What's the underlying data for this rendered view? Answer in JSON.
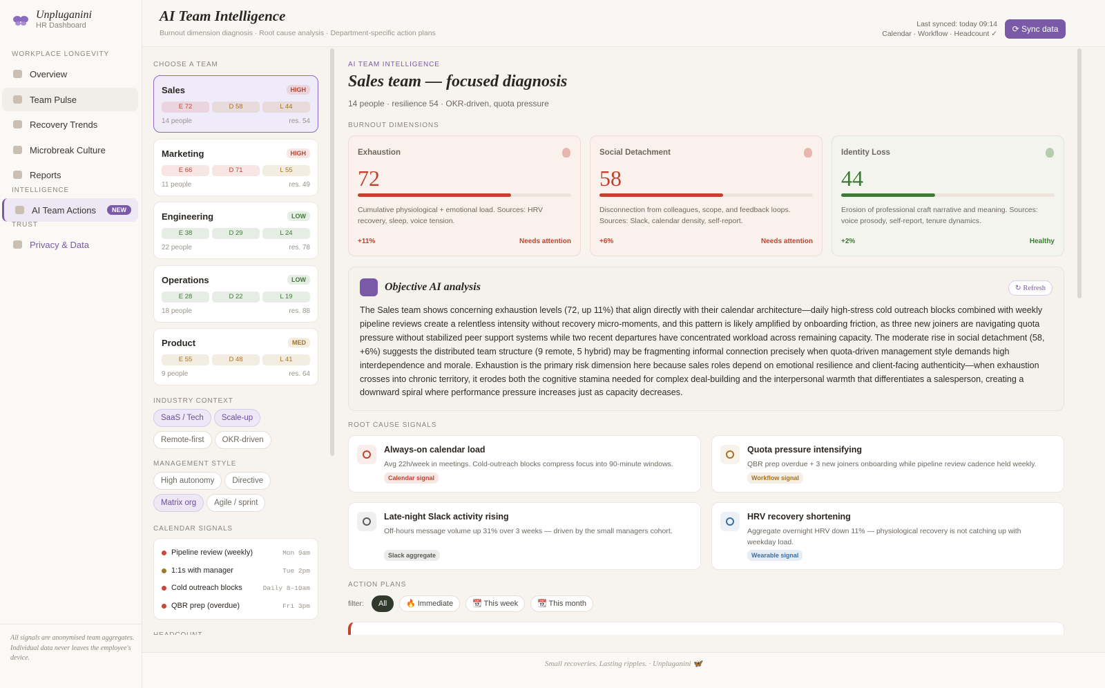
{
  "sidebar": {
    "brand": "Unpluganini",
    "brand_sub": "HR Dashboard",
    "sections": [
      {
        "title": "WORKPLACE LONGEVITY",
        "items": [
          {
            "label": "Overview"
          },
          {
            "label": "Team Pulse",
            "state": "hover"
          },
          {
            "label": "Recovery Trends"
          },
          {
            "label": "Microbreak Culture"
          },
          {
            "label": "Reports"
          }
        ]
      },
      {
        "title": "INTELLIGENCE",
        "items": [
          {
            "label": "AI Team Actions",
            "badge": "NEW",
            "state": "selected"
          }
        ]
      },
      {
        "title": "TRUST",
        "items": [
          {
            "label": "Privacy & Data",
            "state": "accent"
          }
        ]
      }
    ],
    "note": "All signals are anonymised team aggregates. Individual data never leaves the employee's device."
  },
  "header": {
    "title": "AI Team Intelligence",
    "subtitle": "Burnout dimension diagnosis · Root cause analysis · Department-specific action plans",
    "synced": "Last synced: today 09:14",
    "sources": "Calendar · Workflow · Headcount ✓",
    "button": "⟳ Sync data"
  },
  "teams_panel": {
    "title": "CHOOSE A TEAM",
    "teams": [
      {
        "name": "Sales",
        "level": "HIGH",
        "level_color": "#c0432e",
        "selected": true,
        "people": "14 people",
        "resilience": "res. 54",
        "chips": [
          {
            "label": "E 72",
            "color": "#c0432e"
          },
          {
            "label": "D 58",
            "color": "#a8731e"
          },
          {
            "label": "L 44",
            "color": "#a8731e"
          }
        ]
      },
      {
        "name": "Marketing",
        "level": "HIGH",
        "level_color": "#c0432e",
        "people": "11 people",
        "resilience": "res. 49",
        "chips": [
          {
            "label": "E 66",
            "color": "#c0432e"
          },
          {
            "label": "D 71",
            "color": "#c0432e"
          },
          {
            "label": "L 55",
            "color": "#a8731e"
          }
        ]
      },
      {
        "name": "Engineering",
        "level": "LOW",
        "level_color": "#3f7a36",
        "people": "22 people",
        "resilience": "res. 78",
        "chips": [
          {
            "label": "E 38",
            "color": "#3f7a36"
          },
          {
            "label": "D 29",
            "color": "#3f7a36"
          },
          {
            "label": "L 24",
            "color": "#3f7a36"
          }
        ]
      },
      {
        "name": "Operations",
        "level": "LOW",
        "level_color": "#3f7a36",
        "people": "18 people",
        "resilience": "res. 88",
        "chips": [
          {
            "label": "E 28",
            "color": "#3f7a36"
          },
          {
            "label": "D 22",
            "color": "#3f7a36"
          },
          {
            "label": "L 19",
            "color": "#3f7a36"
          }
        ]
      },
      {
        "name": "Product",
        "level": "MED",
        "level_color": "#a8731e",
        "people": "9 people",
        "resilience": "res. 64",
        "chips": [
          {
            "label": "E 55",
            "color": "#a8731e"
          },
          {
            "label": "D 48",
            "color": "#a8731e"
          },
          {
            "label": "L 41",
            "color": "#a8731e"
          }
        ]
      }
    ],
    "industry": {
      "title": "INDUSTRY CONTEXT",
      "options": [
        {
          "label": "SaaS / Tech",
          "selected": true
        },
        {
          "label": "Scale-up",
          "selected": true
        },
        {
          "label": "Remote-first"
        },
        {
          "label": "OKR-driven"
        }
      ]
    },
    "management": {
      "title": "MANAGEMENT STYLE",
      "options": [
        {
          "label": "High autonomy"
        },
        {
          "label": "Directive"
        },
        {
          "label": "Matrix org",
          "selected": true
        },
        {
          "label": "Agile / sprint"
        }
      ]
    },
    "calendar": {
      "title": "CALENDAR SIGNALS",
      "events": [
        {
          "name": "Pipeline review (weekly)",
          "when": "Mon 9am",
          "color": "#c8473a"
        },
        {
          "name": "1:1s with manager",
          "when": "Tue 2pm",
          "color": "#9a7a2e"
        },
        {
          "name": "Cold outreach blocks",
          "when": "Daily 8–10am",
          "color": "#c8473a"
        },
        {
          "name": "QBR prep (overdue)",
          "when": "Fri 3pm",
          "color": "#c8473a"
        }
      ]
    },
    "headcount_title": "HEADCOUNT"
  },
  "main": {
    "kicker": "AI TEAM INTELLIGENCE",
    "heading": "Sales team — focused diagnosis",
    "meta": "14 people · resilience 54 · OKR-driven, quota pressure",
    "dimensions_title": "BURNOUT DIMENSIONS",
    "dimensions": [
      {
        "label": "Exhaustion",
        "value": 72,
        "color": "#c0432e",
        "tint": "#fbf1ec",
        "border": "#f0dcd2",
        "description": "Cumulative physiological + emotional load. Sources: HRV recovery, sleep, voice tension.",
        "delta": "+11%",
        "status": "Needs attention"
      },
      {
        "label": "Social Detachment",
        "value": 58,
        "color": "#c0432e",
        "tint": "#fbf1ec",
        "border": "#f0dcd2",
        "description": "Disconnection from colleagues, scope, and feedback loops. Sources: Slack, calendar density, self-report.",
        "delta": "+6%",
        "status": "Needs attention"
      },
      {
        "label": "Identity Loss",
        "value": 44,
        "color": "#3f7a36",
        "tint": "#f3f4ee",
        "border": "#e1e5d6",
        "description": "Erosion of professional craft narrative and meaning. Sources: voice prosody, self-report, tenure dynamics.",
        "delta": "+2%",
        "status": "Healthy"
      }
    ],
    "analysis": {
      "title": "Objective AI analysis",
      "button": "↻ Refresh",
      "text": "The Sales team shows concerning exhaustion levels (72, up 11%) that align directly with their calendar architecture—daily high-stress cold outreach blocks combined with weekly pipeline reviews create a relentless intensity without recovery micro-moments, and this pattern is likely amplified by onboarding friction, as three new joiners are navigating quota pressure without stabilized peer support systems while two recent departures have concentrated workload across remaining capacity. The moderate rise in social detachment (58, +6%) suggests the distributed team structure (9 remote, 5 hybrid) may be fragmenting informal connection precisely when quota-driven management style demands high interdependence and morale. Exhaustion is the primary risk dimension here because sales roles depend on emotional resilience and client-facing authenticity—when exhaustion crosses into chronic territory, it erodes both the cognitive stamina needed for complex deal-building and the interpersonal warmth that differentiates a salesperson, creating a downward spiral where performance pressure increases just as capacity decreases."
    },
    "root_causes_title": "ROOT CAUSE SIGNALS",
    "root_causes": [
      {
        "title": "Always-on calendar load",
        "description": "Avg 22h/week in meetings. Cold-outreach blocks compress focus into 90-minute windows.",
        "tag": "Calendar signal",
        "color": "#c0432e"
      },
      {
        "title": "Quota pressure intensifying",
        "description": "QBR prep overdue + 3 new joiners onboarding while pipeline review cadence held weekly.",
        "tag": "Workflow signal",
        "color": "#a8731e"
      },
      {
        "title": "Late-night Slack activity rising",
        "description": "Off-hours message volume up 31% over 3 weeks — driven by the small managers cohort.",
        "tag": "Slack aggregate",
        "color": "#5e5a55"
      },
      {
        "title": "HRV recovery shortening",
        "description": "Aggregate overnight HRV down 11% — physiological recovery is not catching up with weekday load.",
        "tag": "Wearable signal",
        "color": "#3a6ea8"
      }
    ],
    "action_plans_title": "ACTION PLANS",
    "filter_label": "filter:",
    "filters": [
      {
        "label": "All",
        "active": true
      },
      {
        "label": "🔥 Immediate"
      },
      {
        "label": "📆 This week"
      },
      {
        "label": "📆 This month"
      }
    ]
  },
  "footer": "Small recoveries. Lasting ripples. · Unpluganini 🦋"
}
